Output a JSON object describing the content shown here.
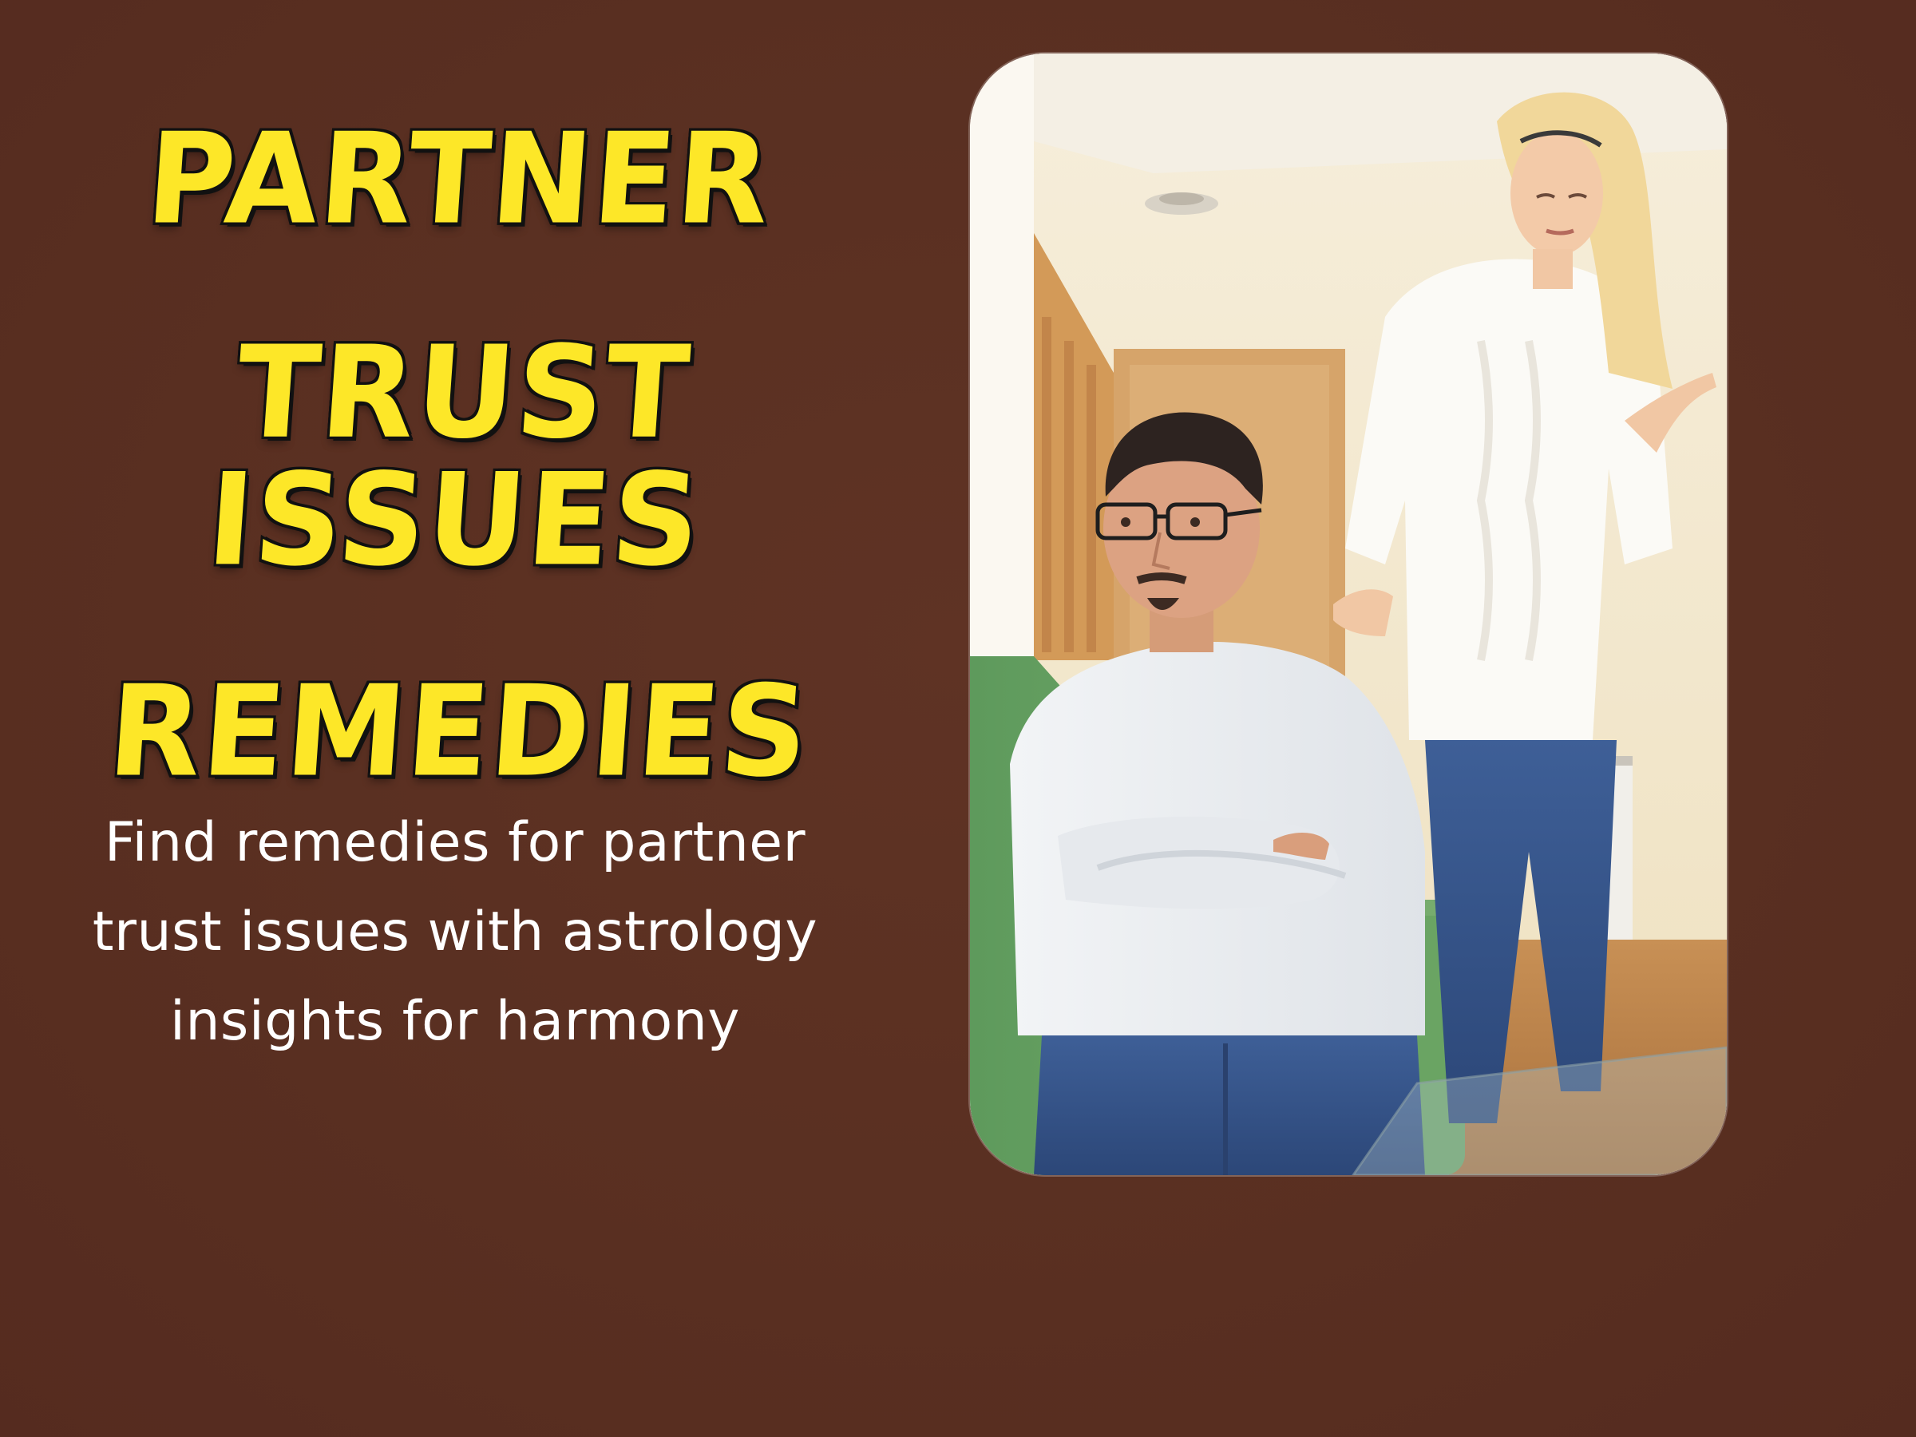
{
  "headline": {
    "line1": "PARTNER",
    "line2": "TRUST ISSUES",
    "line3": "REMEDIES"
  },
  "description": {
    "line1": "Find remedies for partner",
    "line2": "trust issues with astrology",
    "line3": "insights for harmony"
  },
  "colors": {
    "background": "#5a3022",
    "headline_fill": "#fde728",
    "headline_outline": "#111111",
    "description_text": "#ffffff"
  },
  "photo": {
    "scene": "man-sitting-woman-standing-behind"
  }
}
